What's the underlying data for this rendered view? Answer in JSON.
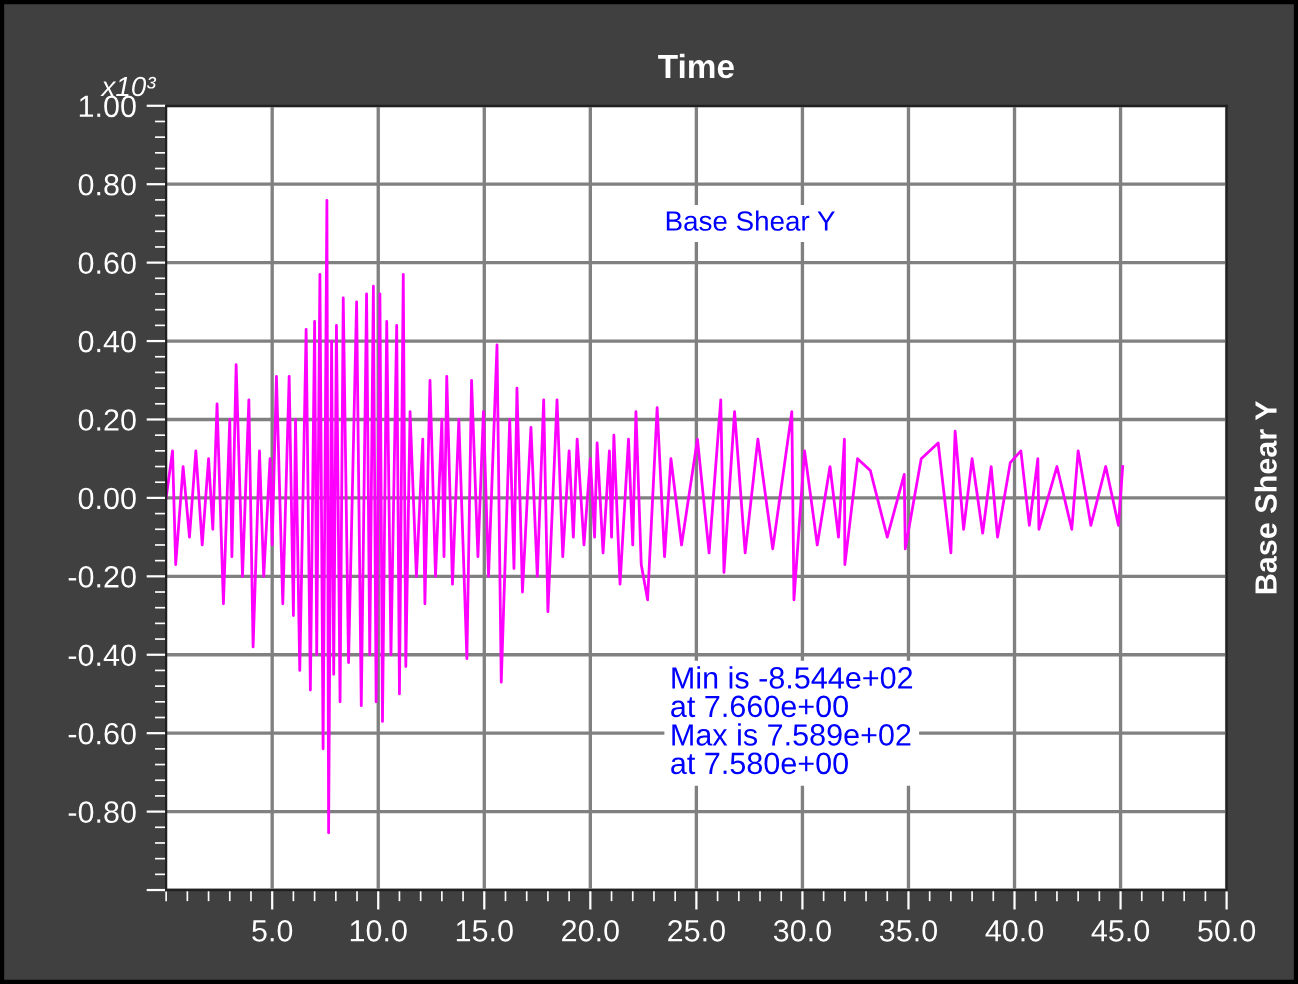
{
  "chart_data": {
    "type": "line",
    "title": "Time",
    "ylabel": "Base Shear Y",
    "annotations": [
      "x10³",
      "Base Shear Y",
      "Min is -8.544e+02\nat 7.660e+00\nMax is 7.589e+02\nat 7.580e+00"
    ],
    "xlim": [
      0,
      50
    ],
    "xticks": [
      {
        "value": 5,
        "label": "5.0"
      },
      {
        "value": 10,
        "label": "10.0"
      },
      {
        "value": 15,
        "label": "15.0"
      },
      {
        "value": 20,
        "label": "20.0"
      },
      {
        "value": 25,
        "label": "25.0"
      },
      {
        "value": 30,
        "label": "30.0"
      },
      {
        "value": 35,
        "label": "35.0"
      },
      {
        "value": 40,
        "label": "40.0"
      },
      {
        "value": 45,
        "label": "45.0"
      },
      {
        "value": 50,
        "label": "50.0"
      }
    ],
    "ylim": [
      -1.0,
      1.0
    ],
    "yticks": [
      {
        "value": 1.0,
        "label": "1.00"
      },
      {
        "value": 0.8,
        "label": "0.80"
      },
      {
        "value": 0.6,
        "label": "0.60"
      },
      {
        "value": 0.4,
        "label": "0.40"
      },
      {
        "value": 0.2,
        "label": "0.20"
      },
      {
        "value": 0.0,
        "label": "0.00"
      },
      {
        "value": -0.2,
        "label": "-0.20"
      },
      {
        "value": -0.4,
        "label": "-0.40"
      },
      {
        "value": -0.6,
        "label": "-0.60"
      },
      {
        "value": -0.8,
        "label": "-0.80"
      },
      {
        "value": -1.0,
        "label": null
      }
    ],
    "grid": true,
    "legend": false,
    "marker": "none",
    "line_style": "solid",
    "series": [
      {
        "color": "#ff00ff",
        "x": [
          0.0,
          0.3,
          0.45,
          0.8,
          1.1,
          1.4,
          1.7,
          2.0,
          2.2,
          2.4,
          2.7,
          3.0,
          3.1,
          3.3,
          3.6,
          3.9,
          4.1,
          4.4,
          4.6,
          4.9,
          5.0,
          5.2,
          5.5,
          5.8,
          6.0,
          6.1,
          6.3,
          6.6,
          6.8,
          7.0,
          7.1,
          7.25,
          7.4,
          7.58,
          7.66,
          7.8,
          7.9,
          8.03,
          8.2,
          8.35,
          8.6,
          8.98,
          9.2,
          9.45,
          9.6,
          9.77,
          9.9,
          10.08,
          10.2,
          10.4,
          10.6,
          10.87,
          11.0,
          11.18,
          11.3,
          11.5,
          11.8,
          12.1,
          12.2,
          12.44,
          12.7,
          13.0,
          13.1,
          13.23,
          13.5,
          13.8,
          14.18,
          14.4,
          14.7,
          14.96,
          15.2,
          15.6,
          15.8,
          16.2,
          16.4,
          16.54,
          16.8,
          17.2,
          17.5,
          17.8,
          18.0,
          18.43,
          18.7,
          19.0,
          19.2,
          19.38,
          19.7,
          20.0,
          20.2,
          20.32,
          20.6,
          20.9,
          21.0,
          21.11,
          21.4,
          21.8,
          22.0,
          22.15,
          22.4,
          22.7,
          23.15,
          23.5,
          23.8,
          24.3,
          25.05,
          25.6,
          26.15,
          26.3,
          26.8,
          27.3,
          27.9,
          28.6,
          29.5,
          29.6,
          30.1,
          30.7,
          31.3,
          31.7,
          31.98,
          32.0,
          32.6,
          33.2,
          34.0,
          34.8,
          34.85,
          35.6,
          36.4,
          37.0,
          37.2,
          37.6,
          38.0,
          38.5,
          38.9,
          39.2,
          39.8,
          40.3,
          40.7,
          41.1,
          41.15,
          42.0,
          42.7,
          43.0,
          43.6,
          44.3,
          44.9,
          45.1
        ],
        "values": [
          0.0,
          0.12,
          -0.17,
          0.08,
          -0.1,
          0.12,
          -0.12,
          0.1,
          -0.08,
          0.24,
          -0.27,
          0.2,
          -0.15,
          0.34,
          -0.2,
          0.25,
          -0.38,
          0.12,
          -0.2,
          0.1,
          -0.12,
          0.31,
          -0.27,
          0.31,
          -0.3,
          0.2,
          -0.44,
          0.43,
          -0.49,
          0.45,
          -0.4,
          0.57,
          -0.64,
          0.759,
          -0.854,
          0.4,
          -0.45,
          0.44,
          -0.52,
          0.51,
          -0.42,
          0.5,
          -0.53,
          0.52,
          -0.4,
          0.54,
          -0.52,
          0.52,
          -0.57,
          0.45,
          -0.4,
          0.44,
          -0.5,
          0.57,
          -0.43,
          0.22,
          -0.2,
          0.15,
          -0.27,
          0.3,
          -0.2,
          0.2,
          -0.15,
          0.31,
          -0.22,
          0.2,
          -0.41,
          0.3,
          -0.15,
          0.22,
          -0.2,
          0.39,
          -0.47,
          0.2,
          -0.18,
          0.28,
          -0.24,
          0.18,
          -0.2,
          0.25,
          -0.29,
          0.25,
          -0.15,
          0.12,
          -0.1,
          0.15,
          -0.12,
          0.1,
          -0.1,
          0.14,
          -0.14,
          0.12,
          -0.1,
          0.16,
          -0.22,
          0.15,
          -0.12,
          0.22,
          -0.17,
          -0.26,
          0.23,
          -0.15,
          0.1,
          -0.12,
          0.15,
          -0.14,
          0.25,
          -0.19,
          0.22,
          -0.14,
          0.15,
          -0.13,
          0.22,
          -0.26,
          0.12,
          -0.12,
          0.08,
          -0.1,
          0.15,
          -0.17,
          0.1,
          0.07,
          -0.1,
          0.06,
          -0.13,
          0.1,
          0.14,
          -0.14,
          0.17,
          -0.08,
          0.1,
          -0.09,
          0.08,
          -0.1,
          0.09,
          0.12,
          -0.07,
          0.1,
          -0.08,
          0.08,
          -0.08,
          0.12,
          -0.07,
          0.08,
          -0.07,
          0.08
        ]
      }
    ]
  }
}
